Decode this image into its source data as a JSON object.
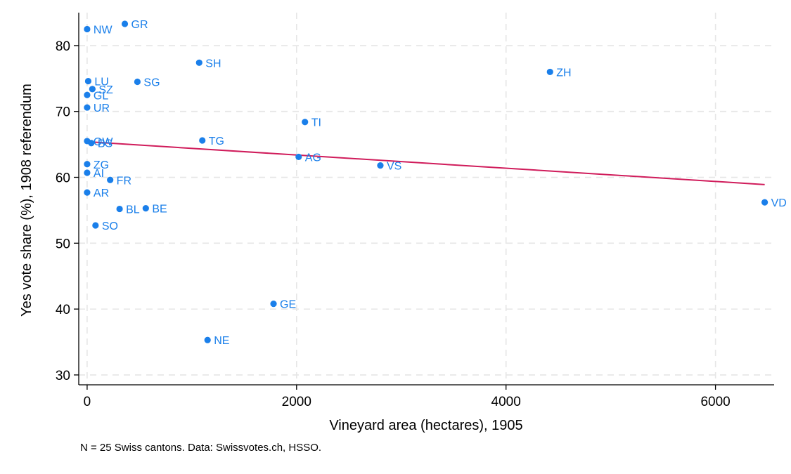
{
  "chart_data": {
    "type": "scatter",
    "xlabel": "Vineyard area (hectares), 1905",
    "ylabel": "Yes vote share (%), 1908 referendum",
    "note": "N = 25 Swiss cantons. Data: Swissvotes.ch, HSSO.",
    "xlim": [
      -80,
      6560
    ],
    "ylim": [
      28.5,
      85
    ],
    "xticks": [
      0,
      2000,
      4000,
      6000
    ],
    "yticks": [
      30,
      40,
      50,
      60,
      70,
      80
    ],
    "grid": true,
    "point_color": "#1a7fea",
    "fit_color": "#d01c5b",
    "grid_color": "#e6e6e6",
    "points": [
      {
        "label": "NW",
        "x": 0,
        "y": 82.5
      },
      {
        "label": "GR",
        "x": 360,
        "y": 83.3
      },
      {
        "label": "SH",
        "x": 1070,
        "y": 77.4
      },
      {
        "label": "ZH",
        "x": 4420,
        "y": 76.0
      },
      {
        "label": "LU",
        "x": 10,
        "y": 74.6
      },
      {
        "label": "SG",
        "x": 480,
        "y": 74.5
      },
      {
        "label": "SZ",
        "x": 50,
        "y": 73.4
      },
      {
        "label": "GL",
        "x": 0,
        "y": 72.5
      },
      {
        "label": "UR",
        "x": 0,
        "y": 70.6
      },
      {
        "label": "TI",
        "x": 2080,
        "y": 68.4
      },
      {
        "label": "OW",
        "x": 0,
        "y": 65.5
      },
      {
        "label": "BS",
        "x": 40,
        "y": 65.2
      },
      {
        "label": "TG",
        "x": 1100,
        "y": 65.6
      },
      {
        "label": "AG",
        "x": 2020,
        "y": 63.1
      },
      {
        "label": "VS",
        "x": 2800,
        "y": 61.8
      },
      {
        "label": "ZG",
        "x": 0,
        "y": 62.0
      },
      {
        "label": "AI",
        "x": 0,
        "y": 60.7
      },
      {
        "label": "FR",
        "x": 220,
        "y": 59.6
      },
      {
        "label": "AR",
        "x": 0,
        "y": 57.7
      },
      {
        "label": "VD",
        "x": 6470,
        "y": 56.2
      },
      {
        "label": "BL",
        "x": 310,
        "y": 55.2
      },
      {
        "label": "BE",
        "x": 560,
        "y": 55.3
      },
      {
        "label": "SO",
        "x": 80,
        "y": 52.7
      },
      {
        "label": "GE",
        "x": 1780,
        "y": 40.8
      },
      {
        "label": "NE",
        "x": 1150,
        "y": 35.3
      }
    ],
    "fit_line": {
      "x": [
        0,
        6470
      ],
      "y": [
        65.4,
        58.9
      ]
    }
  }
}
